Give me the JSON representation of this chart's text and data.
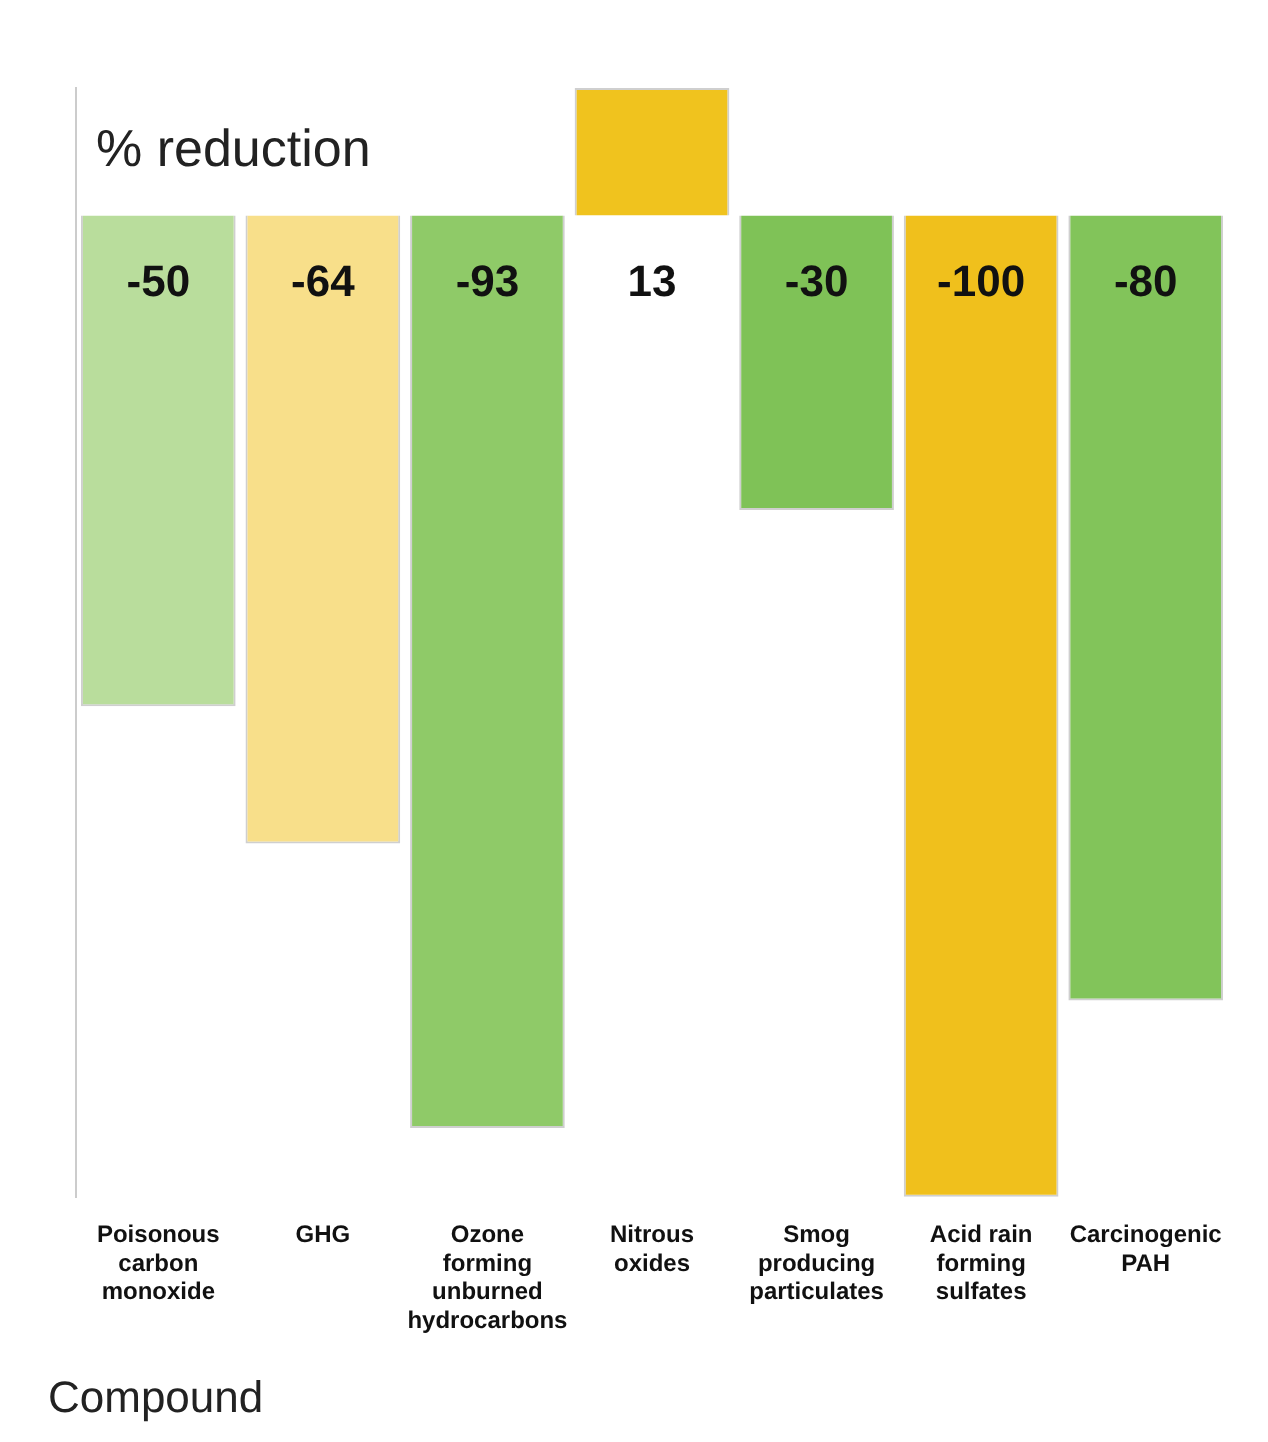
{
  "chart_data": {
    "type": "bar",
    "ylabel": "% reduction",
    "xlabel": "Compound",
    "categories": [
      "Poisonous carbon monoxide",
      "GHG",
      "Ozone forming unburned hydrocarbons",
      "Nitrous oxides",
      "Smog producing particulates",
      "Acid rain forming sulfates",
      "Carcinogenic PAH"
    ],
    "values": [
      -50,
      -64,
      -93,
      13,
      -30,
      -100,
      -80
    ],
    "colors": [
      "#b9dd9c",
      "#f8df8a",
      "#8fca68",
      "#f0c31e",
      "#7fc257",
      "#f0c01c",
      "#82c45a"
    ],
    "ylim": [
      -100,
      13
    ],
    "tick_labels": "x",
    "grid": false,
    "legend": false,
    "data_labels": true
  }
}
